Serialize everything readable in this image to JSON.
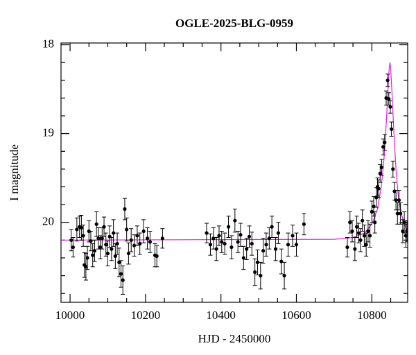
{
  "chart_data": {
    "type": "scatter",
    "title": "OGLE-2025-BLG-0959",
    "xlabel": "HJD - 2450000",
    "ylabel": "I magnitude",
    "xlim": [
      9976,
      10895
    ],
    "ylim": [
      20.9,
      17.98
    ],
    "xticks": [
      10000,
      10200,
      10400,
      10600,
      10800
    ],
    "xminorticks": [
      10050,
      10100,
      10150,
      10250,
      10300,
      10350,
      10450,
      10500,
      10550,
      10650,
      10700,
      10750,
      10850
    ],
    "yticks": [
      18,
      19,
      20
    ],
    "yminorticks": [
      18.2,
      18.4,
      18.6,
      18.8,
      19.2,
      19.4,
      19.6,
      19.8,
      20.2,
      20.4,
      20.6,
      20.8
    ],
    "points": {
      "color": "#000000",
      "x": [
        10003,
        10008,
        10018,
        10025,
        10030,
        10035,
        10038,
        10042,
        10046,
        10050,
        10055,
        10060,
        10065,
        10070,
        10075,
        10080,
        10085,
        10090,
        10095,
        10100,
        10105,
        10110,
        10115,
        10120,
        10125,
        10130,
        10135,
        10140,
        10145,
        10150,
        10155,
        10162,
        10170,
        10178,
        10185,
        10195,
        10205,
        10212,
        10225,
        10230,
        10245,
        10362,
        10372,
        10380,
        10388,
        10395,
        10402,
        10410,
        10420,
        10428,
        10437,
        10445,
        10452,
        10460,
        10468,
        10475,
        10482,
        10490,
        10497,
        10505,
        10512,
        10520,
        10528,
        10535,
        10545,
        10552,
        10560,
        10568,
        10578,
        10590,
        10600,
        10620,
        10735,
        10742,
        10748,
        10755,
        10760,
        10765,
        10770,
        10775,
        10780,
        10785,
        10790,
        10795,
        10800,
        10805,
        10808,
        10812,
        10815,
        10818,
        10822,
        10826,
        10830,
        10834,
        10838,
        10842,
        10845,
        10849,
        10852,
        10856,
        10860,
        10864,
        10868,
        10872,
        10876,
        10882,
        10886,
        10890,
        10893
      ],
      "y": [
        20.2,
        20.28,
        20.08,
        20.05,
        20.06,
        20.15,
        20.48,
        20.5,
        20.4,
        20.1,
        20.21,
        20.37,
        20.32,
        20.02,
        20.18,
        20.28,
        20.18,
        20.05,
        20.25,
        20.35,
        20.16,
        20.3,
        20.12,
        20.38,
        20.24,
        20.45,
        20.58,
        20.65,
        19.85,
        20.08,
        20.35,
        20.2,
        20.26,
        20.15,
        20.24,
        20.1,
        20.18,
        20.22,
        20.37,
        20.38,
        20.18,
        20.12,
        20.25,
        20.18,
        20.3,
        20.15,
        20.22,
        20.24,
        20.05,
        20.28,
        19.98,
        20.22,
        20.14,
        20.4,
        20.3,
        20.16,
        20.24,
        20.56,
        20.45,
        20.6,
        20.32,
        20.25,
        20.18,
        20.05,
        20.3,
        20.12,
        20.44,
        20.6,
        20.25,
        20.15,
        20.25,
        20.02,
        20.28,
        20.0,
        20.1,
        20.3,
        20.05,
        20.12,
        20.2,
        19.98,
        20.15,
        20.25,
        20.1,
        20.15,
        19.88,
        19.82,
        20.0,
        19.72,
        19.6,
        19.62,
        19.45,
        19.38,
        19.15,
        19.1,
        18.6,
        18.4,
        18.61,
        18.7,
        18.95,
        19.4,
        19.65,
        19.75,
        19.9,
        19.75,
        19.9,
        20.1,
        20.0,
        20.15,
        20.1
      ],
      "err": [
        0.12,
        0.11,
        0.13,
        0.12,
        0.14,
        0.12,
        0.14,
        0.15,
        0.13,
        0.12,
        0.11,
        0.13,
        0.12,
        0.14,
        0.12,
        0.13,
        0.12,
        0.11,
        0.13,
        0.14,
        0.12,
        0.13,
        0.15,
        0.14,
        0.12,
        0.16,
        0.15,
        0.16,
        0.12,
        0.13,
        0.12,
        0.13,
        0.12,
        0.11,
        0.12,
        0.13,
        0.12,
        0.12,
        0.13,
        0.12,
        0.11,
        0.11,
        0.12,
        0.12,
        0.13,
        0.11,
        0.12,
        0.12,
        0.12,
        0.13,
        0.13,
        0.12,
        0.13,
        0.13,
        0.12,
        0.12,
        0.13,
        0.15,
        0.14,
        0.15,
        0.14,
        0.13,
        0.12,
        0.12,
        0.13,
        0.12,
        0.14,
        0.15,
        0.13,
        0.12,
        0.13,
        0.12,
        0.11,
        0.12,
        0.12,
        0.13,
        0.12,
        0.11,
        0.13,
        0.12,
        0.12,
        0.13,
        0.12,
        0.13,
        0.12,
        0.11,
        0.12,
        0.11,
        0.1,
        0.1,
        0.1,
        0.09,
        0.09,
        0.09,
        0.08,
        0.07,
        0.07,
        0.07,
        0.08,
        0.09,
        0.1,
        0.11,
        0.12,
        0.11,
        0.12,
        0.13,
        0.12,
        0.13,
        0.12
      ]
    },
    "model": {
      "color": "#e020e0",
      "x": [
        9976,
        10700,
        10750,
        10780,
        10800,
        10815,
        10825,
        10832,
        10838,
        10843,
        10846,
        10848,
        10850,
        10853,
        10858,
        10864,
        10870,
        10878,
        10886,
        10895
      ],
      "y": [
        20.2,
        20.19,
        20.17,
        20.12,
        20.02,
        19.85,
        19.6,
        19.3,
        18.9,
        18.5,
        18.27,
        18.2,
        18.27,
        18.5,
        18.95,
        19.4,
        19.7,
        19.9,
        20.02,
        20.1
      ]
    }
  }
}
